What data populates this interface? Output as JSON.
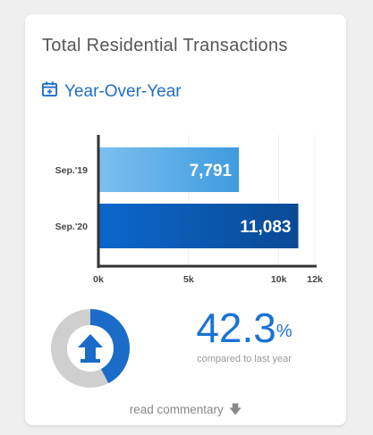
{
  "card": {
    "title": "Total Residential Transactions",
    "subtitle": "Year-Over-Year",
    "calendar_icon": "calendar-plus-icon"
  },
  "chart_data": {
    "type": "bar",
    "orientation": "horizontal",
    "categories": [
      "Sep.'19",
      "Sep.'20"
    ],
    "values": [
      7791,
      11083
    ],
    "value_labels": [
      "7,791",
      "11,083"
    ],
    "xlim": [
      0,
      12000
    ],
    "xticks": [
      0,
      5000,
      10000,
      12000
    ],
    "xtick_labels": [
      "0k",
      "5k",
      "10k",
      "12k"
    ],
    "grid": true,
    "colors": [
      "#5aaee8",
      "#0a5fc0"
    ]
  },
  "change": {
    "value": "42.3",
    "unit": "%",
    "caption": "compared to last year",
    "direction_icon": "arrow-up-icon",
    "donut_fraction": 0.423,
    "donut_color": "#1a6cc8",
    "donut_track_color": "#cfcfcf"
  },
  "footer": {
    "link_label": "read commentary",
    "arrow_icon": "arrow-down-icon"
  }
}
